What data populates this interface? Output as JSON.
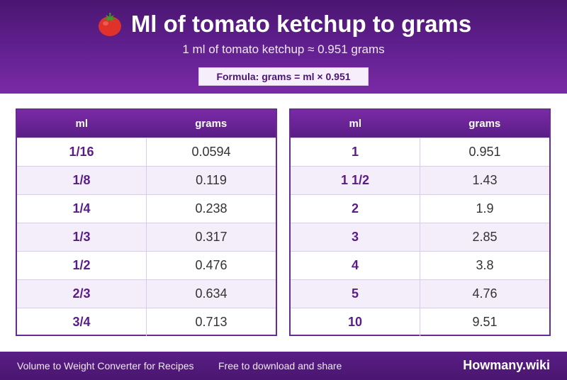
{
  "header": {
    "title": "Ml of tomato ketchup to grams",
    "title_icon": "tomato-icon",
    "subtitle": "1 ml of tomato ketchup ≈ 0.951 grams",
    "formula": "Formula: grams = ml × 0.951"
  },
  "columns": {
    "ml": "ml",
    "grams": "grams"
  },
  "left_table": [
    {
      "ml": "1/16",
      "grams": "0.0594"
    },
    {
      "ml": "1/8",
      "grams": "0.119"
    },
    {
      "ml": "1/4",
      "grams": "0.238"
    },
    {
      "ml": "1/3",
      "grams": "0.317"
    },
    {
      "ml": "1/2",
      "grams": "0.476"
    },
    {
      "ml": "2/3",
      "grams": "0.634"
    },
    {
      "ml": "3/4",
      "grams": "0.713"
    }
  ],
  "right_table": [
    {
      "ml": "1",
      "grams": "0.951"
    },
    {
      "ml": "1 1/2",
      "grams": "1.43"
    },
    {
      "ml": "2",
      "grams": "1.9"
    },
    {
      "ml": "3",
      "grams": "2.85"
    },
    {
      "ml": "4",
      "grams": "3.8"
    },
    {
      "ml": "5",
      "grams": "4.76"
    },
    {
      "ml": "10",
      "grams": "9.51"
    }
  ],
  "footer": {
    "left": "Volume to Weight Converter for Recipes",
    "middle": "Free to download and share",
    "brand": "Howmany.wiki"
  },
  "colors": {
    "header_purple": "#5e1f8c",
    "accent_text": "#5a1d86",
    "alt_row": "#f4eefa"
  }
}
